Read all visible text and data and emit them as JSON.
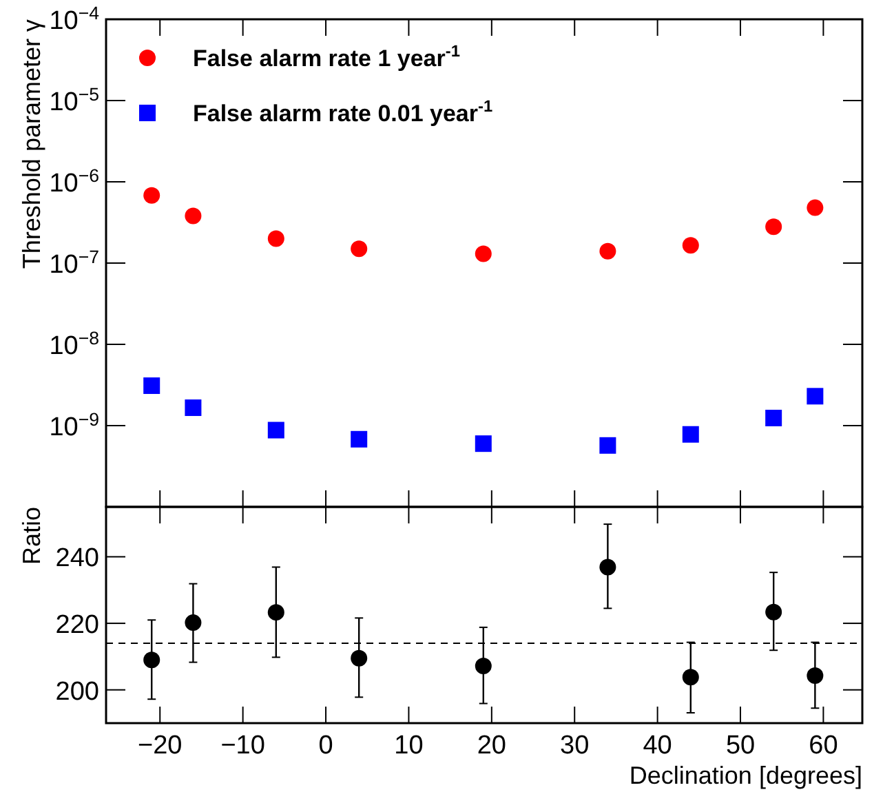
{
  "chart_data": [
    {
      "type": "scatter",
      "ylabel": "Threshold parameter γ",
      "log": "y",
      "xlim": [
        -26.5,
        64.7
      ],
      "ylim": [
        1e-10,
        0.0001
      ],
      "xticks": [
        -20,
        -10,
        0,
        10,
        20,
        30,
        40,
        50,
        60
      ],
      "yticks": [
        {
          "value": 1e-09,
          "label": "10$^{−9}$"
        },
        {
          "value": 1e-08,
          "label": "10$^{−8}$"
        },
        {
          "value": 1e-07,
          "label": "10$^{−7}$"
        },
        {
          "value": 1e-06,
          "label": "10$^{−6}$"
        },
        {
          "value": 1e-05,
          "label": "10$^{−5}$"
        },
        {
          "value": 0.0001,
          "label": "10$^{−4}$"
        }
      ],
      "tick_labels": "y",
      "legend": "top left",
      "grid": false,
      "x": [
        -21,
        -16,
        -6,
        4,
        19,
        34,
        44,
        54,
        59
      ],
      "series": [
        {
          "name": "False alarm rate 1 year$^{-1}$",
          "color": "#ff0000",
          "marker": "circle",
          "values": [
            6.8e-07,
            3.8e-07,
            2e-07,
            1.5e-07,
            1.3e-07,
            1.4e-07,
            1.65e-07,
            2.8e-07,
            4.8e-07
          ]
        },
        {
          "name": "False alarm rate 0.01 year$^{-1}$",
          "color": "#0000ff",
          "marker": "square",
          "values": [
            3.1e-09,
            1.66e-09,
            8.8e-10,
            6.8e-10,
            6e-10,
            5.7e-10,
            7.8e-10,
            1.24e-09,
            2.3e-09
          ]
        }
      ]
    },
    {
      "type": "scatter",
      "xlabel": "Declination [degrees]",
      "ylabel": "Ratio",
      "xlim": [
        -26.5,
        64.7
      ],
      "ylim": [
        190,
        255
      ],
      "xticks": [
        -20,
        -10,
        0,
        10,
        20,
        30,
        40,
        50,
        60
      ],
      "yticks": [
        200,
        220,
        240
      ],
      "grid": false,
      "legend": false,
      "x": [
        -21,
        -16,
        -6,
        4,
        19,
        34,
        44,
        54,
        59
      ],
      "series": [
        {
          "color": "#000000",
          "marker": "circle",
          "values": [
            209.0,
            220.2,
            223.3,
            209.5,
            207.2,
            236.9,
            203.8,
            223.4,
            204.3
          ],
          "errors": [
            [
              197.2,
              221.0
            ],
            [
              208.3,
              231.9
            ],
            [
              209.8,
              236.9
            ],
            [
              197.8,
              221.6
            ],
            [
              195.9,
              218.8
            ],
            [
              224.5,
              249.8
            ],
            [
              193.1,
              214.3
            ],
            [
              211.9,
              235.3
            ],
            [
              194.5,
              214.3
            ]
          ]
        }
      ],
      "ref_lines": [
        {
          "axis": "y",
          "value": 214,
          "line_style": "dashed",
          "color": "#000000"
        }
      ]
    }
  ]
}
